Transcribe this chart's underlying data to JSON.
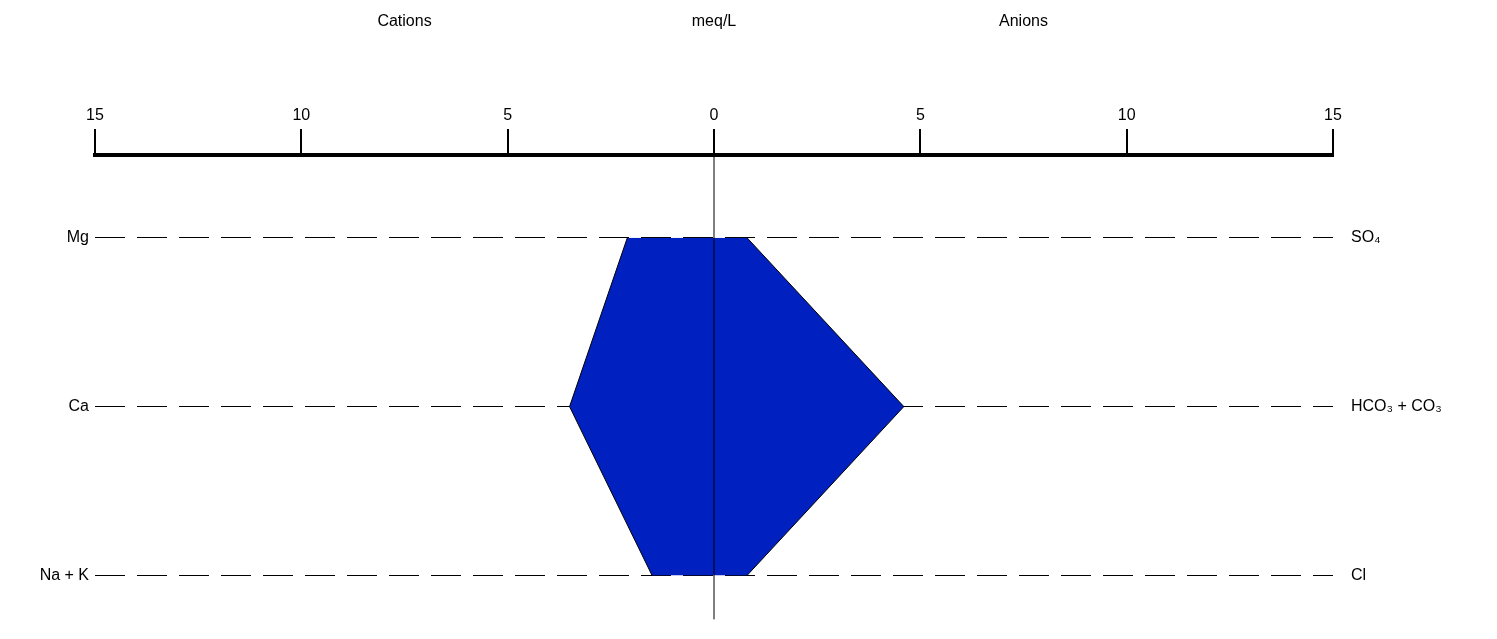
{
  "chart_data": {
    "type": "area",
    "orientation": "horizontal",
    "xlabel": "meq/L",
    "annotations": [
      "Cations",
      "Anions"
    ],
    "categories": [
      "Mg",
      "Ca",
      "Na + K"
    ],
    "y2_categories": [
      "SO₄",
      "HCO₃ + CO₃",
      "Cl"
    ],
    "series": [
      {
        "color": "#0020c0",
        "values": [
          -2.1,
          -3.5,
          -1.5
        ]
      },
      {
        "color": "#0020c0",
        "values": [
          0.8,
          4.6,
          0.8
        ]
      }
    ],
    "xlim": [
      -15,
      15
    ],
    "xticks": [
      {
        "value": -15,
        "label": "15"
      },
      {
        "value": -10,
        "label": "10"
      },
      {
        "value": -5,
        "label": "5"
      },
      0,
      5,
      10,
      15
    ],
    "ref_lines": [
      {
        "axis": "x",
        "value": 0,
        "color": "#000000"
      }
    ],
    "grid": "y",
    "line_style": "solid",
    "legend": false
  }
}
